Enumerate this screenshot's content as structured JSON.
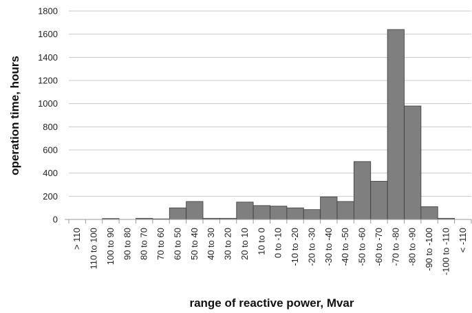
{
  "chart_data": {
    "type": "bar",
    "title": "",
    "xlabel": "range of reactive power, Mvar",
    "ylabel": "operation time, hours",
    "ylim": [
      0,
      1800
    ],
    "yticks": [
      "0",
      "200",
      "400",
      "600",
      "800",
      "1000",
      "1200",
      "1400",
      "1600",
      "1800"
    ],
    "grid": true,
    "legend": "none",
    "categories": [
      "> 110",
      "110 to 100",
      "100 to 90",
      "90 to 80",
      "80 to 70",
      "70 to 60",
      "60 to 50",
      "50 to 40",
      "40 to 30",
      "30 to 20",
      "20 to 10",
      "10 to 0",
      "0 to -10",
      "-10 to -20",
      "-20 to -30",
      "-30 to -40",
      "-40 to -50",
      "-50 to -60",
      "-60 to -70",
      "-70 to -80",
      "-80 to -90",
      "-90 to -100",
      "-100 to -110",
      "< -110"
    ],
    "values": [
      0,
      0,
      8,
      0,
      10,
      5,
      100,
      155,
      10,
      10,
      150,
      120,
      115,
      100,
      85,
      195,
      155,
      500,
      330,
      1640,
      980,
      110,
      10,
      0
    ],
    "colors": {
      "bar": "#7f7f7f",
      "bar_edge": "#3a3a3a",
      "grid": "#c8c8c8",
      "axis": "#9a9a9a"
    }
  }
}
